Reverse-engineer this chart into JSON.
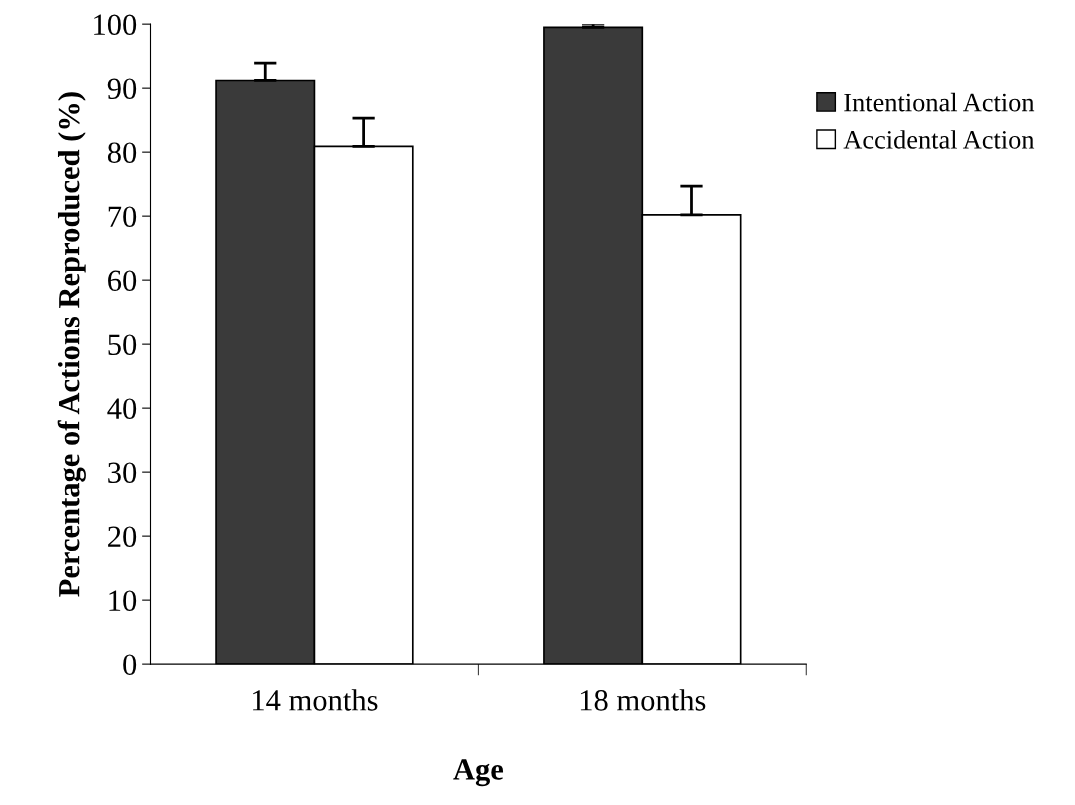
{
  "chart_data": {
    "type": "bar",
    "xlabel": "Age",
    "ylabel": "Percentage of Actions Reproduced (%)",
    "categories": [
      "14 months",
      "18 months"
    ],
    "series": [
      {
        "name": "Intentional Action",
        "color": "#3a3a3a",
        "values": [
          91.2,
          99.5
        ],
        "errors": [
          2.7,
          0.5
        ]
      },
      {
        "name": "Accidental Action",
        "color": "#ffffff",
        "values": [
          80.9,
          70.2
        ],
        "errors": [
          4.4,
          4.5
        ]
      }
    ],
    "ylim": [
      0,
      100
    ],
    "yticks": [
      0,
      10,
      20,
      30,
      40,
      50,
      60,
      70,
      80,
      90,
      100
    ],
    "grid": false,
    "legend": "right"
  }
}
